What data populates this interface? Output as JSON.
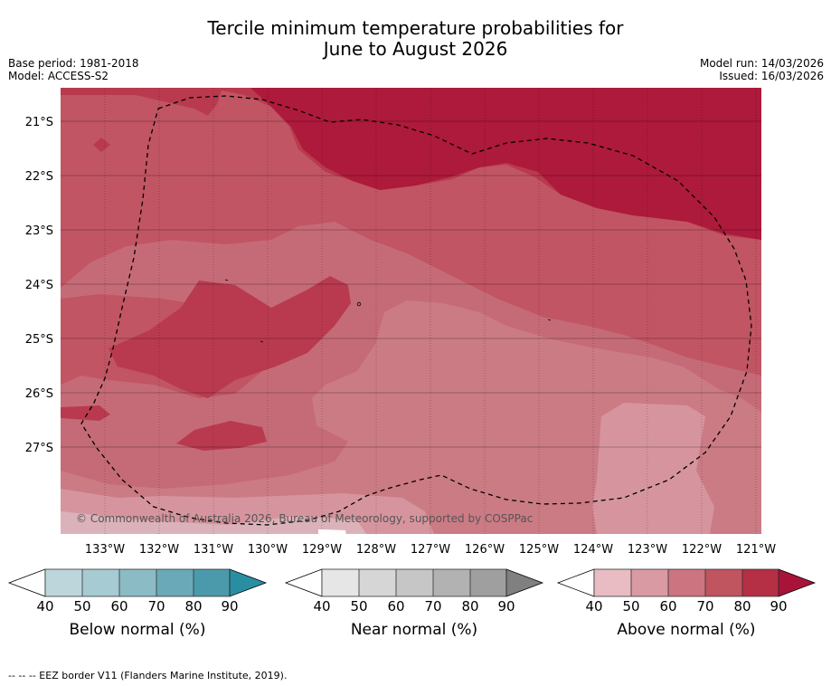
{
  "title_line1": "Tercile minimum temperature probabilities for",
  "title_line2": "June to August 2026",
  "meta": {
    "base_period": "Base period: 1981-2018",
    "model": "Model: ACCESS-S2",
    "model_run": "Model run: 14/03/2026",
    "issued": "Issued: 16/03/2026"
  },
  "map": {
    "lat_labels": [
      "21°S",
      "22°S",
      "23°S",
      "24°S",
      "25°S",
      "26°S",
      "27°S"
    ],
    "lon_labels": [
      "133°W",
      "132°W",
      "131°W",
      "130°W",
      "129°W",
      "128°W",
      "127°W",
      "126°W",
      "125°W",
      "124°W",
      "123°W",
      "122°W",
      "121°W"
    ],
    "copyright": "© Commonwealth of Australia 2026, Bureau of Meteorology, supported by COSPPac"
  },
  "colorbars": [
    {
      "title": "Below normal (%)",
      "ticks": [
        "40",
        "50",
        "60",
        "70",
        "80",
        "90"
      ],
      "colors": [
        "#ffffff",
        "#bdd6dc",
        "#a6cbd2",
        "#8bbbc5",
        "#6aa9b7",
        "#4a9aab",
        "#2a8ea3"
      ]
    },
    {
      "title": "Near normal (%)",
      "ticks": [
        "40",
        "50",
        "60",
        "70",
        "80",
        "90"
      ],
      "colors": [
        "#ffffff",
        "#e6e6e6",
        "#d6d6d6",
        "#c6c6c6",
        "#b2b2b2",
        "#9f9f9f",
        "#808080"
      ]
    },
    {
      "title": "Above normal (%)",
      "ticks": [
        "40",
        "50",
        "60",
        "70",
        "80",
        "90"
      ],
      "colors": [
        "#ffffff",
        "#e8bcc2",
        "#d99aa3",
        "#cc7480",
        "#c0545f",
        "#b52f45",
        "#a8133a"
      ]
    }
  ],
  "footnote": "--  --  -- EEZ border V11 (Flanders Marine Institute, 2019).",
  "colors": {
    "p40": "#dbb2b9",
    "p50": "#d6959e",
    "p60": "#cb7b84",
    "p70": "#c56b77",
    "p80": "#c15563",
    "p90": "#b93a4f",
    "p100": "#ad1a3b"
  }
}
